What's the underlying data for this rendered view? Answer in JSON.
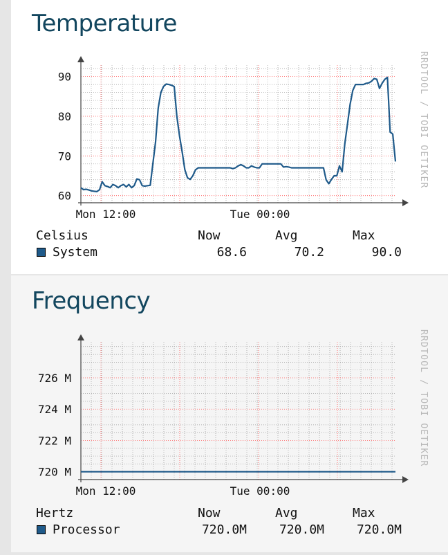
{
  "colors": {
    "series": "#1f5a8a",
    "title": "#12465e",
    "grid_major": "#ff5a5a",
    "grid_minor": "#999999",
    "watermark": "#b8b8b8"
  },
  "watermark": "RRDTOOL / TOBI OETIKER",
  "legend_headers": {
    "now": "Now",
    "avg": "Avg",
    "max": "Max"
  },
  "temperature": {
    "title": "Temperature",
    "unit": "Celsius",
    "series_name": "System",
    "now": "68.6",
    "avg": "70.2",
    "max": "90.0"
  },
  "frequency": {
    "title": "Frequency",
    "unit": "Hertz",
    "series_name": "Processor",
    "now": "720.0M",
    "avg": "720.0M",
    "max": "720.0M"
  },
  "chart_data": [
    {
      "type": "line",
      "title": "Temperature",
      "ylabel": "",
      "xlabel": "",
      "x_tick_labels": [
        "Mon 12:00",
        "Tue 00:00"
      ],
      "y_tick_labels": [
        "60",
        "70",
        "80",
        "90"
      ],
      "ylim": [
        58.2,
        92.9
      ],
      "grid": true,
      "series": [
        {
          "name": "System",
          "points": [
            [
              0,
              62
            ],
            [
              1,
              61.5
            ],
            [
              2,
              61.6
            ],
            [
              3,
              61.4
            ],
            [
              4,
              61.2
            ],
            [
              5,
              61.1
            ],
            [
              6,
              61
            ],
            [
              7,
              61.5
            ],
            [
              8,
              63.5
            ],
            [
              9,
              62.5
            ],
            [
              10,
              62.3
            ],
            [
              11,
              62
            ],
            [
              12,
              62.8
            ],
            [
              13,
              62.5
            ],
            [
              14,
              62
            ],
            [
              15,
              62.5
            ],
            [
              16,
              62.8
            ],
            [
              17,
              62.2
            ],
            [
              18,
              62.8
            ],
            [
              19,
              62
            ],
            [
              20,
              62.5
            ],
            [
              21,
              64.2
            ],
            [
              22,
              64
            ],
            [
              23,
              62.5
            ],
            [
              24,
              62.4
            ],
            [
              25,
              62.5
            ],
            [
              26,
              62.6
            ],
            [
              27,
              68
            ],
            [
              28,
              73.5
            ],
            [
              29,
              82
            ],
            [
              30,
              86
            ],
            [
              31,
              87.5
            ],
            [
              32,
              88.1
            ],
            [
              33,
              88
            ],
            [
              34,
              87.8
            ],
            [
              35,
              87.5
            ],
            [
              36,
              80
            ],
            [
              37,
              75
            ],
            [
              38,
              71
            ],
            [
              39,
              66.5
            ],
            [
              40,
              64.5
            ],
            [
              41,
              64.1
            ],
            [
              42,
              65
            ],
            [
              43,
              66.5
            ],
            [
              44,
              67
            ],
            [
              45,
              67
            ],
            [
              46,
              67
            ],
            [
              47,
              67
            ],
            [
              48,
              67
            ],
            [
              49,
              67
            ],
            [
              50,
              67
            ],
            [
              51,
              67
            ],
            [
              52,
              67
            ],
            [
              53,
              67
            ],
            [
              54,
              67
            ],
            [
              55,
              67
            ],
            [
              56,
              67
            ],
            [
              57,
              66.8
            ],
            [
              58,
              67
            ],
            [
              59,
              67.5
            ],
            [
              60,
              67.8
            ],
            [
              61,
              67.5
            ],
            [
              62,
              67
            ],
            [
              63,
              67
            ],
            [
              64,
              67.5
            ],
            [
              65,
              67.2
            ],
            [
              66,
              67
            ],
            [
              67,
              67
            ],
            [
              68,
              68
            ],
            [
              69,
              68
            ],
            [
              70,
              68
            ],
            [
              71,
              68
            ],
            [
              72,
              68
            ],
            [
              73,
              68
            ],
            [
              74,
              68
            ],
            [
              75,
              68
            ],
            [
              76,
              67.2
            ],
            [
              77,
              67.3
            ],
            [
              78,
              67.2
            ],
            [
              79,
              67
            ],
            [
              80,
              67
            ],
            [
              81,
              67
            ],
            [
              82,
              67
            ],
            [
              83,
              67
            ],
            [
              84,
              67
            ],
            [
              85,
              67
            ],
            [
              86,
              67
            ],
            [
              87,
              67
            ],
            [
              88,
              67
            ],
            [
              89,
              67
            ],
            [
              90,
              67
            ],
            [
              91,
              67
            ],
            [
              92,
              64
            ],
            [
              93,
              63
            ],
            [
              94,
              64.1
            ],
            [
              95,
              65
            ],
            [
              96,
              65
            ],
            [
              97,
              67.5
            ],
            [
              98,
              66
            ],
            [
              99,
              73
            ],
            [
              100,
              78
            ],
            [
              101,
              83
            ],
            [
              102,
              86.5
            ],
            [
              103,
              88
            ],
            [
              104,
              88
            ],
            [
              105,
              88
            ],
            [
              106,
              88
            ],
            [
              107,
              88.3
            ],
            [
              108,
              88.4
            ],
            [
              109,
              88.8
            ],
            [
              110,
              89.5
            ],
            [
              111,
              89.3
            ],
            [
              112,
              87
            ],
            [
              113,
              88.3
            ],
            [
              114,
              89.3
            ],
            [
              115,
              89.8
            ],
            [
              116,
              76
            ],
            [
              117,
              75.5
            ],
            [
              118,
              68.6
            ]
          ]
        }
      ]
    },
    {
      "type": "line",
      "title": "Frequency",
      "ylabel": "",
      "xlabel": "",
      "x_tick_labels": [
        "Mon 12:00",
        "Tue 00:00"
      ],
      "y_tick_labels": [
        "720 M",
        "722 M",
        "724 M",
        "726 M"
      ],
      "ylim": [
        719.5,
        728.3
      ],
      "grid": true,
      "series": [
        {
          "name": "Processor",
          "points": [
            [
              0,
              720
            ],
            [
              118,
              720
            ]
          ]
        }
      ]
    }
  ]
}
